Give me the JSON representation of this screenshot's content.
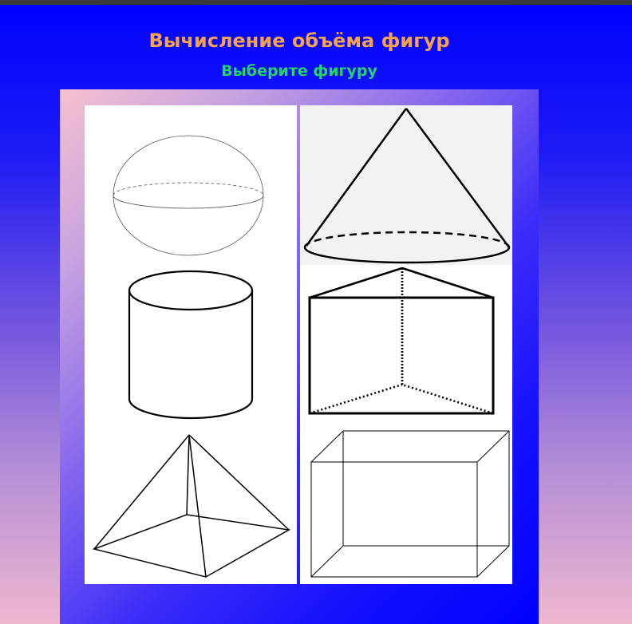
{
  "header": {
    "title": "Вычисление объёма фигур",
    "subtitle": "Выберите фигуру"
  },
  "shapes": [
    {
      "id": "sphere",
      "icon": "sphere-icon"
    },
    {
      "id": "cone",
      "icon": "cone-icon"
    },
    {
      "id": "cylinder",
      "icon": "cylinder-icon"
    },
    {
      "id": "prism",
      "icon": "triangular-prism-icon"
    },
    {
      "id": "pyramid",
      "icon": "pyramid-icon"
    },
    {
      "id": "box",
      "icon": "rectangular-box-icon"
    }
  ],
  "colors": {
    "title": "#f4a34c",
    "subtitle": "#25d366",
    "background_top": "#0000ff",
    "background_bottom": "#f0b7cf"
  }
}
